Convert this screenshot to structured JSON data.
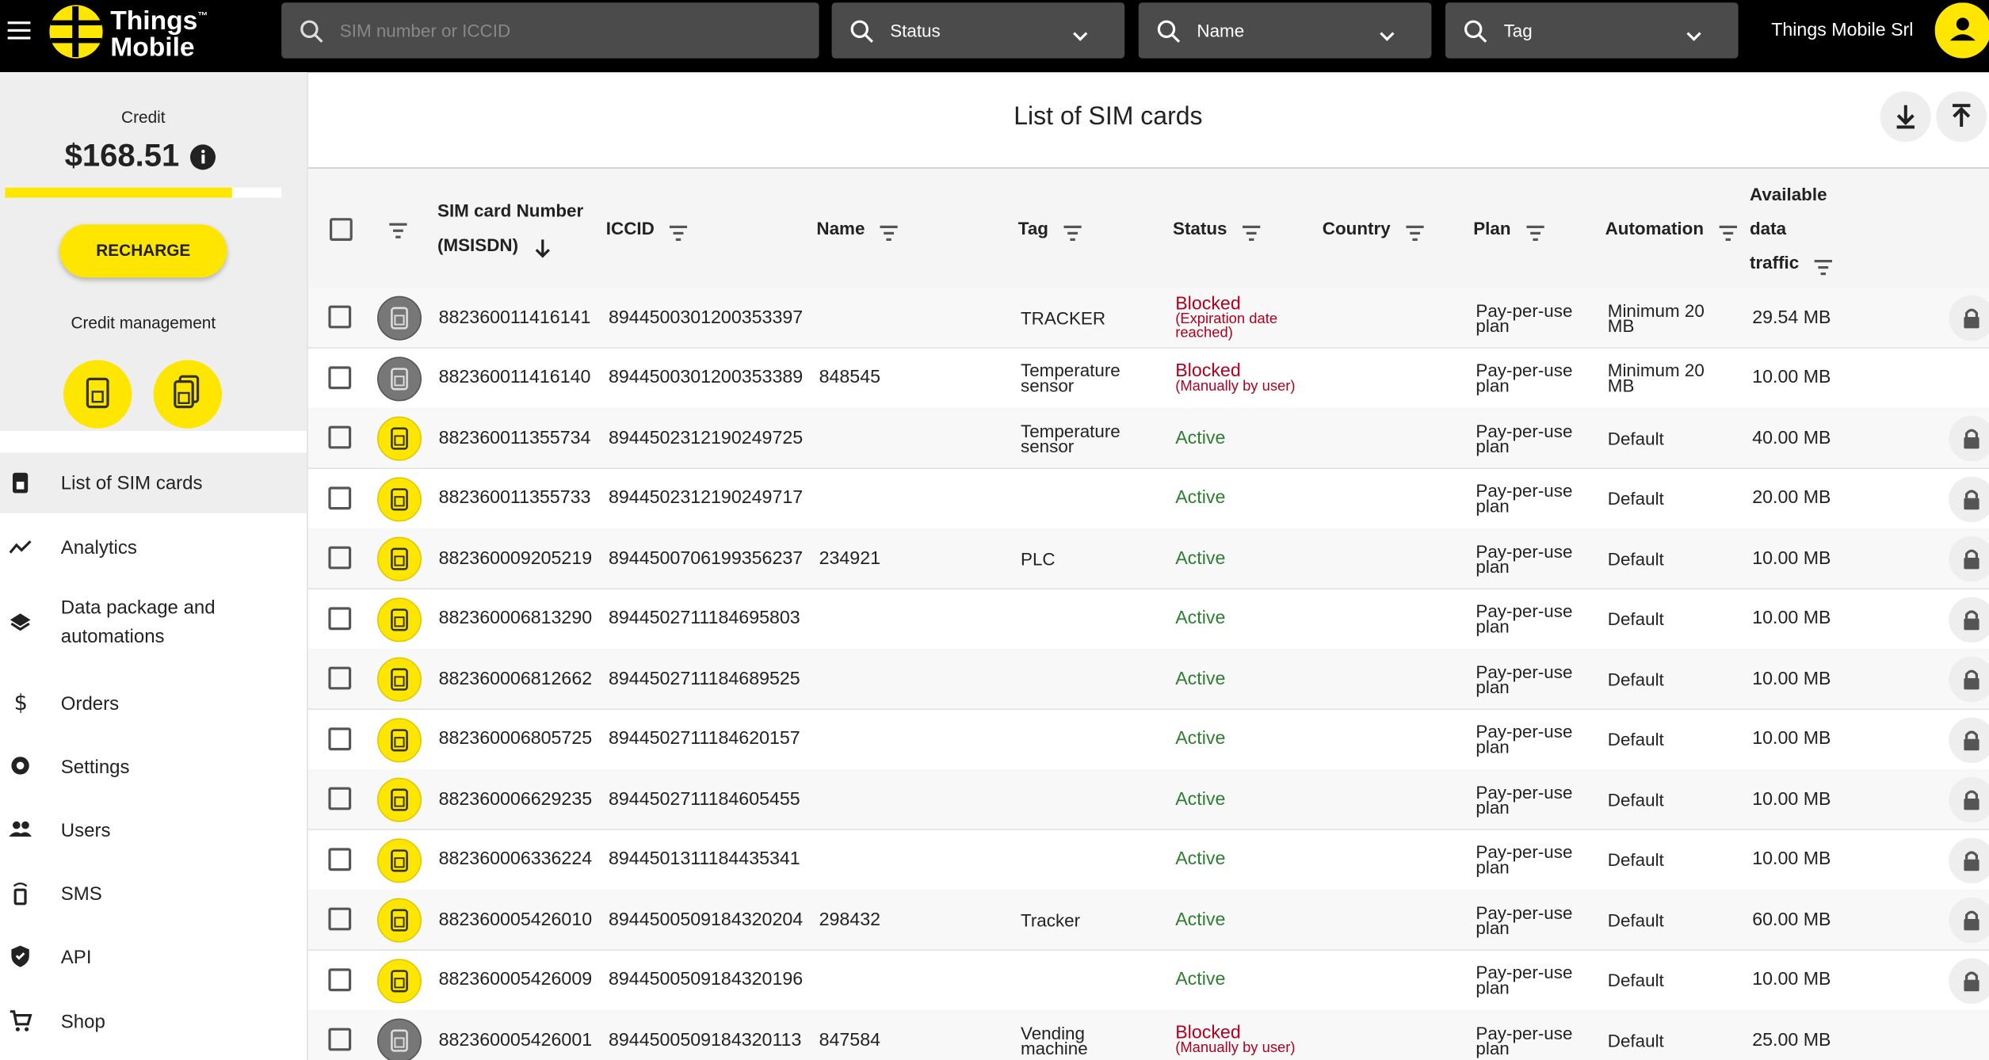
{
  "header": {
    "logo_line1": "Things",
    "logo_tm": "™",
    "logo_line2": "Mobile",
    "search_placeholder": "SIM number or ICCID",
    "filters": [
      "Status",
      "Name",
      "Tag"
    ],
    "account": "Things Mobile Srl"
  },
  "sidebar": {
    "credit_label": "Credit",
    "credit_amount": "$168.51",
    "recharge": "RECHARGE",
    "credit_management": "Credit management",
    "nav": [
      [
        "List of SIM cards"
      ],
      [
        "Analytics"
      ],
      [
        "Data package and",
        "automations"
      ],
      [
        "Orders"
      ],
      [
        "Settings"
      ],
      [
        "Users"
      ],
      [
        "SMS"
      ],
      [
        "API"
      ],
      [
        "Shop"
      ]
    ]
  },
  "main": {
    "title": "List of SIM cards",
    "columns": {
      "msisdn": [
        "SIM card Number",
        "(MSISDN)"
      ],
      "iccid": [
        "ICCID"
      ],
      "name": [
        "Name"
      ],
      "tag": [
        "Tag"
      ],
      "status": [
        "Status"
      ],
      "country": [
        "Country"
      ],
      "plan": [
        "Plan"
      ],
      "automation": [
        "Automation"
      ],
      "traffic": [
        "Available",
        "data",
        "traffic"
      ]
    },
    "rows": [
      {
        "msisdn": "882360011416141",
        "iccid": "8944500301200353397",
        "tag": "TRACKER",
        "status": "Blocked",
        "status_note": "(Expiration date reached)",
        "plan": "Pay-per-use plan",
        "automation": "Minimum 20 MB",
        "traffic": "29.54 MB"
      },
      {
        "msisdn": "882360011416140",
        "iccid": "8944500301200353389",
        "name": "848545",
        "tag": "Temperature sensor",
        "status": "Blocked",
        "status_note": "(Manually by user)",
        "plan": "Pay-per-use plan",
        "automation": "Minimum 20 MB",
        "traffic": "10.00 MB"
      },
      {
        "msisdn": "882360011355734",
        "iccid": "8944502312190249725",
        "tag": "Temperature sensor",
        "status": "Active",
        "plan": "Pay-per-use plan",
        "automation": "Default",
        "traffic": "40.00 MB"
      },
      {
        "msisdn": "882360011355733",
        "iccid": "8944502312190249717",
        "status": "Active",
        "plan": "Pay-per-use plan",
        "automation": "Default",
        "traffic": "20.00 MB"
      },
      {
        "msisdn": "882360009205219",
        "iccid": "8944500706199356237",
        "name": "234921",
        "tag": "PLC",
        "status": "Active",
        "plan": "Pay-per-use plan",
        "automation": "Default",
        "traffic": "10.00 MB"
      },
      {
        "msisdn": "882360006813290",
        "iccid": "8944502711184695803",
        "status": "Active",
        "plan": "Pay-per-use plan",
        "automation": "Default",
        "traffic": "10.00 MB"
      },
      {
        "msisdn": "882360006812662",
        "iccid": "8944502711184689525",
        "status": "Active",
        "plan": "Pay-per-use plan",
        "automation": "Default",
        "traffic": "10.00 MB"
      },
      {
        "msisdn": "882360006805725",
        "iccid": "8944502711184620157",
        "status": "Active",
        "plan": "Pay-per-use plan",
        "automation": "Default",
        "traffic": "10.00 MB"
      },
      {
        "msisdn": "882360006629235",
        "iccid": "8944502711184605455",
        "status": "Active",
        "plan": "Pay-per-use plan",
        "automation": "Default",
        "traffic": "10.00 MB"
      },
      {
        "msisdn": "882360006336224",
        "iccid": "8944501311184435341",
        "status": "Active",
        "plan": "Pay-per-use plan",
        "automation": "Default",
        "traffic": "10.00 MB"
      },
      {
        "msisdn": "882360005426010",
        "iccid": "8944500509184320204",
        "name": "298432",
        "tag": "Tracker",
        "status": "Active",
        "plan": "Pay-per-use plan",
        "automation": "Default",
        "traffic": "60.00 MB"
      },
      {
        "msisdn": "882360005426009",
        "iccid": "8944500509184320196",
        "status": "Active",
        "plan": "Pay-per-use plan",
        "automation": "Default",
        "traffic": "10.00 MB"
      },
      {
        "msisdn": "882360005426001",
        "iccid": "8944500509184320113",
        "name": "847584",
        "tag": "Vending machine",
        "status": "Blocked",
        "status_note": "(Manually by user)",
        "plan": "Pay-per-use plan",
        "automation": "Default",
        "traffic": "25.00 MB"
      }
    ]
  }
}
